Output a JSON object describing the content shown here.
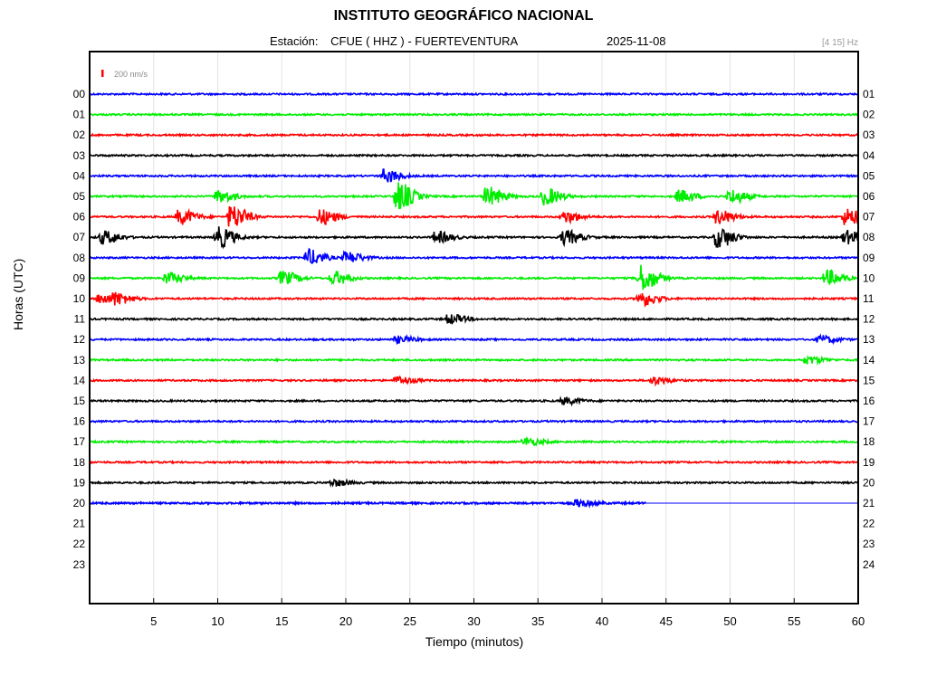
{
  "header": {
    "title": "INSTITUTO GEOGRÁFICO NACIONAL",
    "station_label": "Estación:",
    "station": "CFUE ( HHZ ) - FUERTEVENTURA",
    "date": "2025-11-08",
    "filter": "[4 15] Hz"
  },
  "scale": {
    "label": "200 nm/s",
    "color": "#ff0000"
  },
  "chart_data": {
    "type": "line",
    "xlabel": "Tiempo (minutos)",
    "ylabel": "Horas (UTC)",
    "xlim": [
      0,
      60
    ],
    "xticks": [
      5,
      10,
      15,
      20,
      25,
      30,
      35,
      40,
      45,
      50,
      55,
      60
    ],
    "grid": true,
    "left_labels": [
      "00",
      "01",
      "02",
      "03",
      "04",
      "05",
      "06",
      "07",
      "08",
      "09",
      "10",
      "11",
      "12",
      "13",
      "14",
      "15",
      "16",
      "17",
      "18",
      "19",
      "20",
      "21",
      "22",
      "23"
    ],
    "right_labels": [
      "01",
      "02",
      "03",
      "04",
      "05",
      "06",
      "07",
      "08",
      "09",
      "10",
      "11",
      "12",
      "13",
      "14",
      "15",
      "16",
      "17",
      "18",
      "19",
      "20",
      "21",
      "22",
      "23",
      "24"
    ],
    "trace_colors": [
      "#0000ff",
      "#00ee00",
      "#ff0000",
      "#000000"
    ],
    "recorded_hours": 21,
    "last_trace_end_minute": 43.4,
    "events": [
      {
        "hour": 4,
        "minute": 23,
        "amp": 1.4
      },
      {
        "hour": 5,
        "minute": 10,
        "amp": 1.3
      },
      {
        "hour": 5,
        "minute": 24,
        "amp": 3.0
      },
      {
        "hour": 5,
        "minute": 31,
        "amp": 2.0
      },
      {
        "hour": 5,
        "minute": 35.5,
        "amp": 1.8
      },
      {
        "hour": 5,
        "minute": 46,
        "amp": 1.3
      },
      {
        "hour": 5,
        "minute": 50,
        "amp": 1.5
      },
      {
        "hour": 6,
        "minute": 7,
        "amp": 1.6
      },
      {
        "hour": 6,
        "minute": 11,
        "amp": 2.5
      },
      {
        "hour": 6,
        "minute": 18,
        "amp": 1.6
      },
      {
        "hour": 6,
        "minute": 37,
        "amp": 1.2
      },
      {
        "hour": 6,
        "minute": 49,
        "amp": 1.5
      },
      {
        "hour": 6,
        "minute": 59,
        "amp": 1.8
      },
      {
        "hour": 7,
        "minute": 1,
        "amp": 1.4
      },
      {
        "hour": 7,
        "minute": 10,
        "amp": 2.2
      },
      {
        "hour": 7,
        "minute": 27,
        "amp": 1.2
      },
      {
        "hour": 7,
        "minute": 37,
        "amp": 1.5
      },
      {
        "hour": 7,
        "minute": 49,
        "amp": 2.2
      },
      {
        "hour": 7,
        "minute": 59,
        "amp": 1.4
      },
      {
        "hour": 8,
        "minute": 17,
        "amp": 1.7
      },
      {
        "hour": 8,
        "minute": 20,
        "amp": 1.2
      },
      {
        "hour": 9,
        "minute": 6,
        "amp": 1.2
      },
      {
        "hour": 9,
        "minute": 15,
        "amp": 1.4
      },
      {
        "hour": 9,
        "minute": 19,
        "amp": 1.4
      },
      {
        "hour": 9,
        "minute": 43,
        "amp": 2.8
      },
      {
        "hour": 9,
        "minute": 57.5,
        "amp": 1.6
      },
      {
        "hour": 10,
        "minute": 0.8,
        "amp": 1.1
      },
      {
        "hour": 10,
        "minute": 2,
        "amp": 1.0
      },
      {
        "hour": 10,
        "minute": 43,
        "amp": 1.5
      },
      {
        "hour": 11,
        "minute": 28,
        "amp": 1.0
      },
      {
        "hour": 12,
        "minute": 24,
        "amp": 0.7
      },
      {
        "hour": 12,
        "minute": 57,
        "amp": 0.8
      },
      {
        "hour": 13,
        "minute": 56,
        "amp": 0.8
      },
      {
        "hour": 14,
        "minute": 24,
        "amp": 0.8
      },
      {
        "hour": 14,
        "minute": 44,
        "amp": 0.8
      },
      {
        "hour": 15,
        "minute": 37,
        "amp": 0.7
      },
      {
        "hour": 17,
        "minute": 34,
        "amp": 0.8
      },
      {
        "hour": 19,
        "minute": 19,
        "amp": 0.7
      },
      {
        "hour": 20,
        "minute": 38,
        "amp": 0.7
      }
    ]
  }
}
